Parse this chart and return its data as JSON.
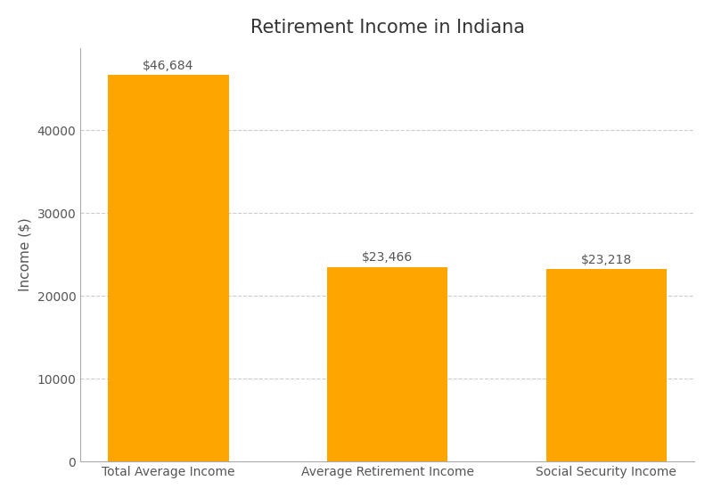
{
  "title": "Retirement Income in Indiana",
  "categories": [
    "Total Average Income",
    "Average Retirement Income",
    "Social Security Income"
  ],
  "values": [
    46684,
    23466,
    23218
  ],
  "labels": [
    "$46,684",
    "$23,466",
    "$23,218"
  ],
  "bar_color": "#FFA500",
  "ylabel": "Income ($)",
  "ylim": [
    0,
    50000
  ],
  "yticks": [
    0,
    10000,
    20000,
    30000,
    40000
  ],
  "background_color": "#ffffff",
  "grid_color": "#cccccc",
  "title_fontsize": 15,
  "label_fontsize": 10,
  "tick_fontsize": 10,
  "ylabel_fontsize": 11,
  "bar_width": 0.55
}
